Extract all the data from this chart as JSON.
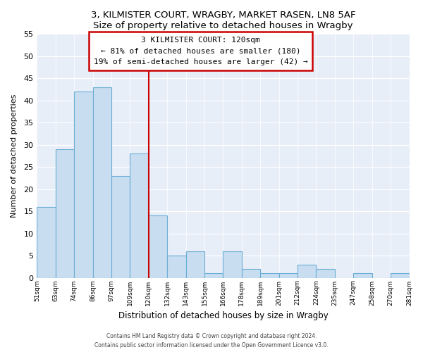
{
  "title1": "3, KILMISTER COURT, WRAGBY, MARKET RASEN, LN8 5AF",
  "title2": "Size of property relative to detached houses in Wragby",
  "xlabel": "Distribution of detached houses by size in Wragby",
  "ylabel": "Number of detached properties",
  "bar_labels": [
    "51sqm",
    "63sqm",
    "74sqm",
    "86sqm",
    "97sqm",
    "109sqm",
    "120sqm",
    "132sqm",
    "143sqm",
    "155sqm",
    "166sqm",
    "178sqm",
    "189sqm",
    "201sqm",
    "212sqm",
    "224sqm",
    "235sqm",
    "247sqm",
    "258sqm",
    "270sqm",
    "281sqm"
  ],
  "bar_values": [
    16,
    29,
    42,
    43,
    23,
    28,
    14,
    5,
    6,
    1,
    6,
    2,
    1,
    1,
    3,
    2,
    0,
    1,
    0,
    1
  ],
  "bar_color": "#c8ddf0",
  "bar_edge_color": "#6aaed6",
  "vline_color": "#cc0000",
  "vline_x_index": 6,
  "annotation_title": "3 KILMISTER COURT: 120sqm",
  "annotation_line1": "← 81% of detached houses are smaller (180)",
  "annotation_line2": "19% of semi-detached houses are larger (42) →",
  "annotation_box_color": "#ffffff",
  "annotation_box_edge": "#cc0000",
  "ylim": [
    0,
    55
  ],
  "yticks": [
    0,
    5,
    10,
    15,
    20,
    25,
    30,
    35,
    40,
    45,
    50,
    55
  ],
  "bg_color": "#e8eef8",
  "footer1": "Contains HM Land Registry data © Crown copyright and database right 2024.",
  "footer2": "Contains public sector information licensed under the Open Government Licence v3.0."
}
